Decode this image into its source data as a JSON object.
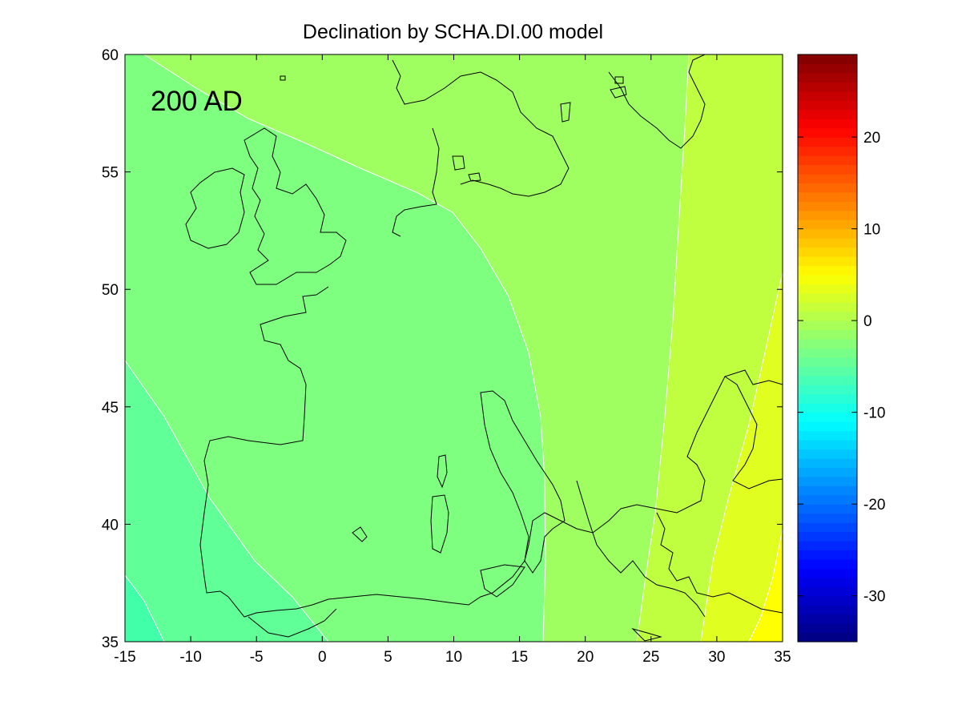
{
  "chart_data": {
    "type": "heatmap",
    "title": "Declination by SCHA.DI.00 model",
    "annotation": "200 AD",
    "xlabel": "",
    "ylabel": "",
    "xlim": [
      -15,
      35
    ],
    "ylim": [
      35,
      60
    ],
    "x_ticks": [
      -15,
      -10,
      -5,
      0,
      5,
      10,
      15,
      20,
      25,
      30,
      35
    ],
    "y_ticks": [
      35,
      40,
      45,
      50,
      55,
      60
    ],
    "colorbar": {
      "range": [
        -35,
        29
      ],
      "ticks": [
        -30,
        -20,
        -10,
        0,
        10,
        20
      ],
      "colormap": "jet"
    },
    "contour_levels": [
      -7,
      -5,
      -3,
      -1,
      1,
      3,
      5
    ],
    "contour_bands": [
      {
        "range": [
          -7,
          -5
        ],
        "color": "#40ffa8"
      },
      {
        "range": [
          -5,
          -3
        ],
        "color": "#60ff98"
      },
      {
        "range": [
          -3,
          -1
        ],
        "color": "#7fff80"
      },
      {
        "range": [
          -1,
          1
        ],
        "color": "#a0ff60"
      },
      {
        "range": [
          1,
          3
        ],
        "color": "#c0ff40"
      },
      {
        "range": [
          3,
          5
        ],
        "color": "#e0ff20"
      },
      {
        "range": [
          5,
          7
        ],
        "color": "#ffff00"
      }
    ],
    "grid": false,
    "colors": {
      "coastline": "#000000",
      "contour_line": "#ffffff"
    }
  }
}
